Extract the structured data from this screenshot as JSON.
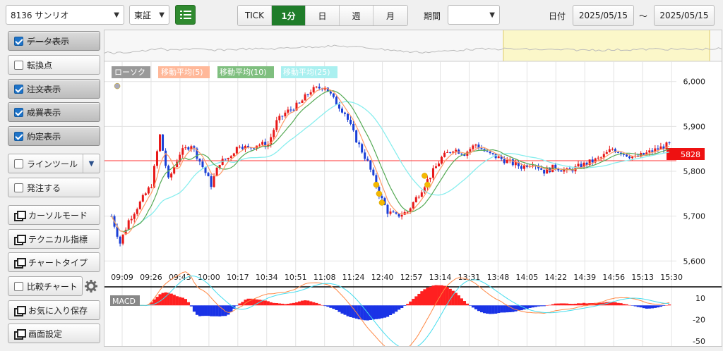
{
  "toolbar": {
    "symbol": "8136 サンリオ",
    "market": "東証",
    "intervals": [
      "TICK",
      "1分",
      "日",
      "週",
      "月"
    ],
    "active_interval": "1分",
    "period_label": "期間",
    "period_value": "",
    "date_label": "日付",
    "date_from": "2025/05/15",
    "date_sep": "～",
    "date_to": "2025/05/15"
  },
  "sidebar": {
    "items": [
      {
        "label": "データ表示",
        "checked": true,
        "on": true
      },
      {
        "label": "転換点",
        "checked": false,
        "on": false
      },
      {
        "label": "注文表示",
        "checked": true,
        "on": true
      },
      {
        "label": "成買表示",
        "checked": true,
        "on": true
      },
      {
        "label": "約定表示",
        "checked": true,
        "on": true
      },
      {
        "label": "ラインツール",
        "checked": false,
        "on": false
      },
      {
        "label": "発注する",
        "checked": false,
        "on": false
      },
      {
        "label": "カーソルモード"
      },
      {
        "label": "テクニカル指標"
      },
      {
        "label": "チャートタイプ"
      },
      {
        "label": "比較チャート",
        "checked": false
      },
      {
        "label": "お気に入り保存"
      },
      {
        "label": "画面設定"
      }
    ]
  },
  "chart_data": [
    {
      "type": "candlestick",
      "legend": [
        "ローソク",
        "移動平均(5)",
        "移動平均(10)",
        "移動平均(25)"
      ],
      "legend_colors": [
        "#999999",
        "#ff9966",
        "#66aa66",
        "#88eeee"
      ],
      "x_ticks": [
        "09:09",
        "09:26",
        "09:43",
        "10:00",
        "10:17",
        "10:34",
        "10:51",
        "11:08",
        "11:24",
        "12:40",
        "12:57",
        "13:14",
        "13:31",
        "13:48",
        "14:05",
        "14:22",
        "14:39",
        "14:56",
        "15:13",
        "15:30"
      ],
      "y_ticks": [
        "6,000",
        "5,900",
        "5,800",
        "5,700",
        "5,600"
      ],
      "y_values": [
        6000,
        5900,
        5800,
        5700,
        5600
      ],
      "ylim": [
        5580,
        6020
      ],
      "current_price": "5828",
      "current_value": 5828,
      "path": [
        [
          0,
          5700
        ],
        [
          3,
          5640
        ],
        [
          6,
          5690
        ],
        [
          10,
          5730
        ],
        [
          14,
          5770
        ],
        [
          17,
          5880
        ],
        [
          20,
          5780
        ],
        [
          24,
          5840
        ],
        [
          28,
          5860
        ],
        [
          32,
          5810
        ],
        [
          35,
          5770
        ],
        [
          38,
          5820
        ],
        [
          41,
          5830
        ],
        [
          45,
          5860
        ],
        [
          48,
          5850
        ],
        [
          51,
          5860
        ],
        [
          55,
          5860
        ],
        [
          58,
          5910
        ],
        [
          61,
          5930
        ],
        [
          66,
          5950
        ],
        [
          70,
          5980
        ],
        [
          75,
          5990
        ],
        [
          78,
          5960
        ],
        [
          82,
          5930
        ],
        [
          86,
          5870
        ],
        [
          90,
          5820
        ],
        [
          94,
          5750
        ],
        [
          97,
          5710
        ],
        [
          100,
          5700
        ],
        [
          104,
          5710
        ],
        [
          108,
          5750
        ],
        [
          112,
          5790
        ],
        [
          116,
          5830
        ],
        [
          120,
          5850
        ],
        [
          124,
          5840
        ],
        [
          128,
          5860
        ],
        [
          132,
          5840
        ],
        [
          136,
          5830
        ],
        [
          140,
          5820
        ],
        [
          144,
          5810
        ],
        [
          148,
          5820
        ],
        [
          152,
          5800
        ],
        [
          156,
          5810
        ],
        [
          160,
          5800
        ],
        [
          164,
          5810
        ],
        [
          168,
          5820
        ],
        [
          172,
          5830
        ],
        [
          176,
          5850
        ],
        [
          180,
          5840
        ],
        [
          184,
          5830
        ],
        [
          188,
          5840
        ],
        [
          192,
          5850
        ],
        [
          196,
          5860
        ]
      ]
    },
    {
      "type": "histogram",
      "legend": [
        "MACD"
      ],
      "y_ticks": [
        "10",
        "-20",
        "-50"
      ],
      "y_values": [
        10,
        -20,
        -50
      ],
      "ylim": [
        -55,
        20
      ]
    }
  ]
}
